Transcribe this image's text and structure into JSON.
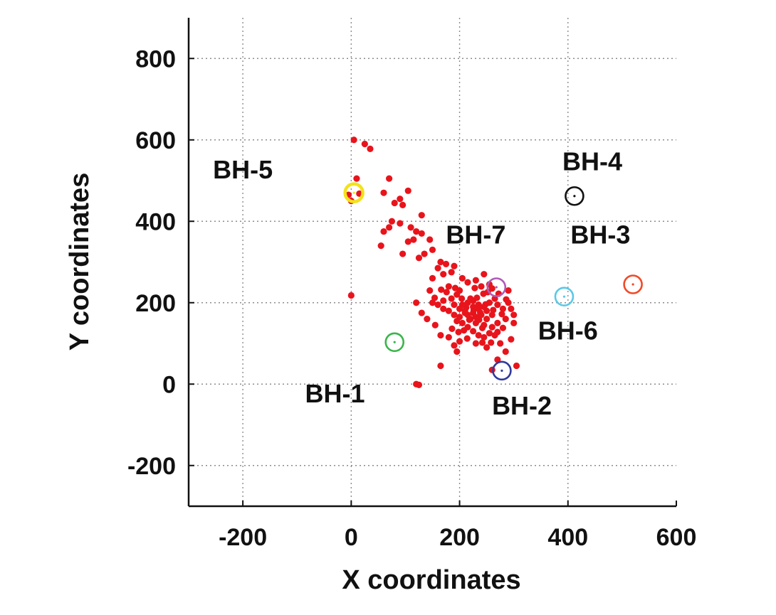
{
  "chart_data": {
    "type": "scatter",
    "xlabel": "X coordinates",
    "ylabel": "Y coordinates",
    "xlim": [
      -300,
      600
    ],
    "ylim": [
      -300,
      900
    ],
    "xticks": [
      -200,
      0,
      200,
      400,
      600
    ],
    "yticks": [
      -200,
      0,
      200,
      400,
      600,
      800
    ],
    "grid": true,
    "grid_style": "dotted",
    "colors": {
      "events": "#e8141c",
      "axis": "#111111",
      "grid": "#8c8c8c"
    },
    "series": [
      {
        "marker": "filled-dot",
        "color": "#e8141c",
        "points": [
          [
            5,
            600
          ],
          [
            25,
            590
          ],
          [
            35,
            578
          ],
          [
            10,
            505
          ],
          [
            70,
            505
          ],
          [
            -5,
            465
          ],
          [
            15,
            468
          ],
          [
            0,
            450
          ],
          [
            60,
            470
          ],
          [
            105,
            475
          ],
          [
            80,
            445
          ],
          [
            95,
            440
          ],
          [
            90,
            455
          ],
          [
            130,
            415
          ],
          [
            75,
            400
          ],
          [
            90,
            395
          ],
          [
            70,
            385
          ],
          [
            110,
            385
          ],
          [
            120,
            375
          ],
          [
            60,
            375
          ],
          [
            130,
            370
          ],
          [
            115,
            355
          ],
          [
            105,
            350
          ],
          [
            55,
            340
          ],
          [
            145,
            355
          ],
          [
            150,
            330
          ],
          [
            135,
            320
          ],
          [
            95,
            320
          ],
          [
            125,
            310
          ],
          [
            165,
            300
          ],
          [
            175,
            295
          ],
          [
            190,
            290
          ],
          [
            185,
            275
          ],
          [
            160,
            285
          ],
          [
            170,
            270
          ],
          [
            205,
            260
          ],
          [
            215,
            250
          ],
          [
            230,
            255
          ],
          [
            245,
            270
          ],
          [
            255,
            245
          ],
          [
            260,
            235
          ],
          [
            180,
            240
          ],
          [
            200,
            230
          ],
          [
            195,
            220
          ],
          [
            185,
            210
          ],
          [
            170,
            205
          ],
          [
            190,
            195
          ],
          [
            205,
            195
          ],
          [
            215,
            200
          ],
          [
            225,
            205
          ],
          [
            235,
            195
          ],
          [
            245,
            190
          ],
          [
            255,
            200
          ],
          [
            265,
            210
          ],
          [
            270,
            195
          ],
          [
            280,
            185
          ],
          [
            290,
            200
          ],
          [
            295,
            185
          ],
          [
            300,
            170
          ],
          [
            285,
            160
          ],
          [
            270,
            150
          ],
          [
            260,
            140
          ],
          [
            245,
            145
          ],
          [
            230,
            150
          ],
          [
            220,
            160
          ],
          [
            210,
            175
          ],
          [
            200,
            165
          ],
          [
            190,
            170
          ],
          [
            180,
            180
          ],
          [
            170,
            185
          ],
          [
            160,
            195
          ],
          [
            150,
            200
          ],
          [
            200,
            185
          ],
          [
            210,
            180
          ],
          [
            215,
            170
          ],
          [
            225,
            175
          ],
          [
            230,
            165
          ],
          [
            240,
            170
          ],
          [
            250,
            160
          ],
          [
            260,
            170
          ],
          [
            250,
            180
          ],
          [
            235,
            185
          ],
          [
            225,
            190
          ],
          [
            205,
            150
          ],
          [
            195,
            155
          ],
          [
            215,
            140
          ],
          [
            225,
            130
          ],
          [
            235,
            120
          ],
          [
            245,
            115
          ],
          [
            255,
            125
          ],
          [
            265,
            120
          ],
          [
            275,
            100
          ],
          [
            250,
            90
          ],
          [
            230,
            100
          ],
          [
            200,
            105
          ],
          [
            190,
            95
          ],
          [
            180,
            115
          ],
          [
            165,
            120
          ],
          [
            155,
            145
          ],
          [
            140,
            160
          ],
          [
            130,
            175
          ],
          [
            120,
            200
          ],
          [
            145,
            230
          ],
          [
            150,
            260
          ],
          [
            290,
            230
          ],
          [
            300,
            150
          ],
          [
            295,
            110
          ],
          [
            285,
            80
          ],
          [
            270,
            60
          ],
          [
            305,
            45
          ],
          [
            260,
            35
          ],
          [
            165,
            45
          ],
          [
            195,
            80
          ],
          [
            125,
            -2
          ],
          [
            120,
            0
          ],
          [
            0,
            218
          ],
          [
            220,
            210
          ],
          [
            232,
            212
          ],
          [
            244,
            222
          ],
          [
            212,
            188
          ],
          [
            226,
            182
          ],
          [
            238,
            176
          ],
          [
            248,
            196
          ],
          [
            262,
            182
          ],
          [
            278,
            172
          ],
          [
            218,
            158
          ],
          [
            236,
            158
          ],
          [
            204,
            210
          ],
          [
            192,
            236
          ],
          [
            176,
            226
          ],
          [
            166,
            232
          ],
          [
            154,
            212
          ],
          [
            198,
            128
          ],
          [
            186,
            136
          ],
          [
            208,
            132
          ],
          [
            242,
            138
          ],
          [
            270,
            128
          ],
          [
            280,
            138
          ],
          [
            258,
            102
          ],
          [
            214,
            112
          ],
          [
            242,
            102
          ],
          [
            228,
            236
          ],
          [
            252,
            226
          ],
          [
            240,
            240
          ],
          [
            272,
            222
          ],
          [
            286,
            208
          ]
        ]
      }
    ],
    "boreholes": [
      {
        "label": "BH-1",
        "x": 80,
        "y": 103,
        "color": "#3ab54a"
      },
      {
        "label": "BH-2",
        "x": 278,
        "y": 33,
        "color": "#2f3b9c"
      },
      {
        "label": "BH-3",
        "x": 520,
        "y": 245,
        "color": "#f04a28"
      },
      {
        "label": "BH-4",
        "x": 412,
        "y": 462,
        "color": "#111111"
      },
      {
        "label": "BH-5",
        "x": 5,
        "y": 470,
        "color": "#f2e21b"
      },
      {
        "label": "BH-6",
        "x": 393,
        "y": 215,
        "color": "#5bc8e6"
      },
      {
        "label": "BH-7",
        "x": 268,
        "y": 238,
        "color": "#b05ab8"
      }
    ],
    "annotations": [
      {
        "text": "BH-1",
        "x": -30,
        "y": -45
      },
      {
        "text": "BH-2",
        "x": 315,
        "y": -75
      },
      {
        "text": "BH-3",
        "x": 460,
        "y": 345
      },
      {
        "text": "BH-4",
        "x": 445,
        "y": 525
      },
      {
        "text": "BH-5",
        "x": -200,
        "y": 505
      },
      {
        "text": "BH-6",
        "x": 400,
        "y": 110
      },
      {
        "text": "BH-7",
        "x": 230,
        "y": 345
      }
    ]
  }
}
